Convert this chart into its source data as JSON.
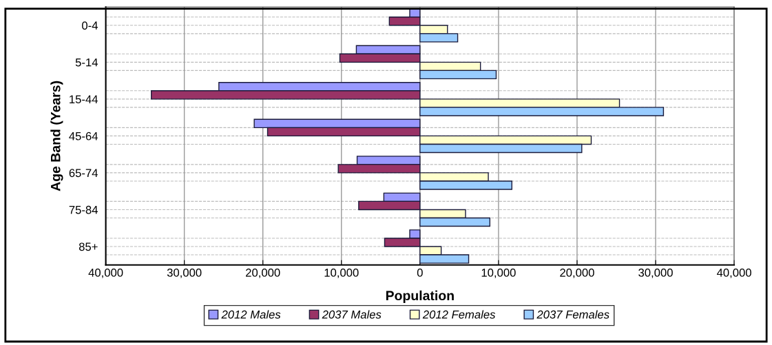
{
  "chart_data": {
    "type": "bar",
    "orientation": "horizontal",
    "xlabel": "Population",
    "ylabel": "Age Band (Years)",
    "categories": [
      "0-4",
      "5-14",
      "15-44",
      "45-64",
      "65-74",
      "75-84",
      "85+"
    ],
    "series": [
      {
        "name": "2012 Males",
        "color": "#9999ff",
        "values": [
          -1300,
          -8100,
          -25600,
          -21100,
          -8000,
          -4600,
          -1300
        ]
      },
      {
        "name": "2037 Males",
        "color": "#993366",
        "values": [
          -3900,
          -10200,
          -34200,
          -19400,
          -10400,
          -7800,
          -4500
        ]
      },
      {
        "name": "2012 Females",
        "color": "#ffffcc",
        "values": [
          3500,
          7700,
          25400,
          21800,
          8700,
          5800,
          2700
        ]
      },
      {
        "name": "2037 Females",
        "color": "#99ccff",
        "values": [
          4800,
          9700,
          31000,
          20600,
          11700,
          8900,
          6200
        ]
      }
    ],
    "xlim": [
      -40000,
      40000
    ],
    "xticks": [
      {
        "value": -40000,
        "label": "40,000"
      },
      {
        "value": -30000,
        "label": "30,000"
      },
      {
        "value": -20000,
        "label": "20,000"
      },
      {
        "value": -10000,
        "label": "10,000"
      },
      0,
      {
        "value": 10000,
        "label": "10,000"
      },
      {
        "value": 20000,
        "label": "20,000"
      },
      {
        "value": 30000,
        "label": "30,000"
      },
      {
        "value": 40000,
        "label": "40,000"
      }
    ],
    "grid": true,
    "legend": "bottom"
  }
}
